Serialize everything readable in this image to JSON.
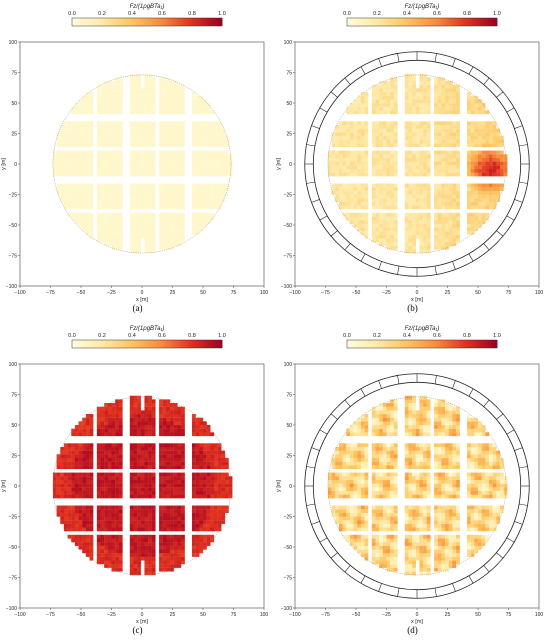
{
  "colorbar": {
    "title": "Fz/(1ρgBTa₁)",
    "ticks": [
      "0.0",
      "0.2",
      "0.4",
      "0.6",
      "0.8",
      "1.0"
    ],
    "range": [
      0,
      1
    ],
    "colors": [
      "#fffddc",
      "#fee9a6",
      "#fdc35e",
      "#f98a3b",
      "#e0301f",
      "#9e0022"
    ]
  },
  "chart_data": [
    {
      "type": "heatmap",
      "caption": "(a)",
      "xlabel": "x [m]",
      "ylabel": "y [m]",
      "xlim": [
        -100,
        100
      ],
      "ylim": [
        -100,
        100
      ],
      "x_ticks": [
        "−100",
        "−75",
        "−50",
        "−25",
        "0",
        "25",
        "50",
        "75",
        "100"
      ],
      "y_ticks": [
        "−100",
        "−75",
        "−50",
        "−25",
        "0",
        "25",
        "50",
        "75",
        "100"
      ],
      "colorbar_range": [
        0,
        1
      ],
      "breakwater": false,
      "field": {
        "mean": 0.06,
        "variation": 0.02,
        "pattern": "uniform"
      }
    },
    {
      "type": "heatmap",
      "caption": "(b)",
      "xlabel": "x [m]",
      "ylabel": "y [m]",
      "xlim": [
        -100,
        100
      ],
      "ylim": [
        -100,
        100
      ],
      "x_ticks": [
        "−100",
        "−75",
        "−50",
        "−25",
        "0",
        "25",
        "50",
        "75",
        "100"
      ],
      "y_ticks": [
        "−100",
        "−75",
        "−50",
        "−25",
        "0",
        "25",
        "50",
        "75",
        "100"
      ],
      "colorbar_range": [
        0,
        1
      ],
      "breakwater": true,
      "field": {
        "mean": 0.22,
        "variation": 0.12,
        "pattern": "east_hotspot",
        "peak": 0.85,
        "peak_at": [
          60,
          -5
        ]
      }
    },
    {
      "type": "heatmap",
      "caption": "(c)",
      "xlabel": "x [m]",
      "ylabel": "y [m]",
      "xlim": [
        -100,
        100
      ],
      "ylim": [
        -100,
        100
      ],
      "x_ticks": [
        "−100",
        "−75",
        "−50",
        "−25",
        "0",
        "25",
        "50",
        "75",
        "100"
      ],
      "y_ticks": [
        "−100",
        "−75",
        "−50",
        "−25",
        "0",
        "25",
        "50",
        "75",
        "100"
      ],
      "colorbar_range": [
        0,
        1
      ],
      "breakwater": false,
      "field": {
        "mean": 0.9,
        "variation": 0.1,
        "pattern": "high"
      }
    },
    {
      "type": "heatmap",
      "caption": "(d)",
      "xlabel": "x [m]",
      "ylabel": "y [m]",
      "xlim": [
        -100,
        100
      ],
      "ylim": [
        -100,
        100
      ],
      "x_ticks": [
        "−100",
        "−75",
        "−50",
        "−25",
        "0",
        "25",
        "50",
        "75",
        "100"
      ],
      "y_ticks": [
        "−100",
        "−75",
        "−50",
        "−25",
        "0",
        "25",
        "50",
        "75",
        "100"
      ],
      "colorbar_range": [
        0,
        1
      ],
      "breakwater": true,
      "field": {
        "mean": 0.3,
        "variation": 0.2,
        "pattern": "wavy"
      }
    }
  ]
}
